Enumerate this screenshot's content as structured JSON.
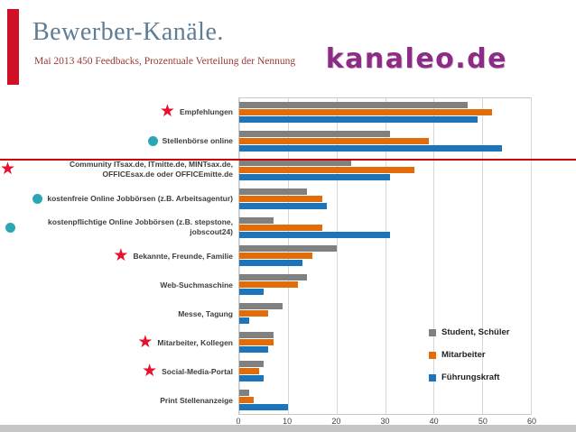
{
  "slide": {
    "title": "Bewerber-Kanäle.",
    "subtitle": "Mai 2013 450 Feedbacks, Prozentuale Verteilung der Nennung",
    "logo_text": "kanaleo.de",
    "colors": {
      "accent_red": "#d01026",
      "title": "#5f7d95",
      "subtitle": "#9a3a33",
      "logo_purple": "#8d2b87",
      "line_red": "#cc0000",
      "star_red": "#e8112d",
      "dot_teal": "#2aa7b4"
    }
  },
  "chart_data": {
    "type": "bar",
    "orientation": "horizontal",
    "title": "",
    "xlabel": "",
    "ylabel": "",
    "xlim": [
      0,
      60
    ],
    "xticks": [
      0,
      10,
      20,
      30,
      40,
      50,
      60
    ],
    "grid": true,
    "legend_position": "inside-bottom-right",
    "categories": [
      "Empfehlungen",
      "Stellenbörse online",
      "Community ITsax.de, ITmitte.de, MINTsax.de, OFFICEsax.de oder OFFICEmitte.de",
      "kostenfreie Online Jobbörsen (z.B. Arbeitsagentur)",
      "kostenpflichtige Online Jobbörsen (z.B. stepstone, jobscout24)",
      "Bekannte, Freunde, Familie",
      "Web-Suchmaschine",
      "Messe, Tagung",
      "Mitarbeiter, Kollegen",
      "Social-Media-Portal",
      "Print Stellenanzeige"
    ],
    "markers": [
      "star",
      "dot",
      "star",
      "dot",
      "dot",
      "star",
      "none",
      "none",
      "star",
      "star",
      "none"
    ],
    "series": [
      {
        "name": "Student, Schüler",
        "color": "#808080",
        "values": [
          47,
          31,
          23,
          14,
          7,
          20,
          14,
          9,
          7,
          5,
          2
        ]
      },
      {
        "name": "Mitarbeiter",
        "color": "#e36c0a",
        "values": [
          52,
          39,
          36,
          17,
          17,
          15,
          12,
          6,
          7,
          4,
          3
        ]
      },
      {
        "name": "Führungskraft",
        "color": "#1c75bc",
        "values": [
          49,
          54,
          31,
          18,
          31,
          13,
          5,
          2,
          6,
          5,
          10
        ]
      }
    ]
  }
}
